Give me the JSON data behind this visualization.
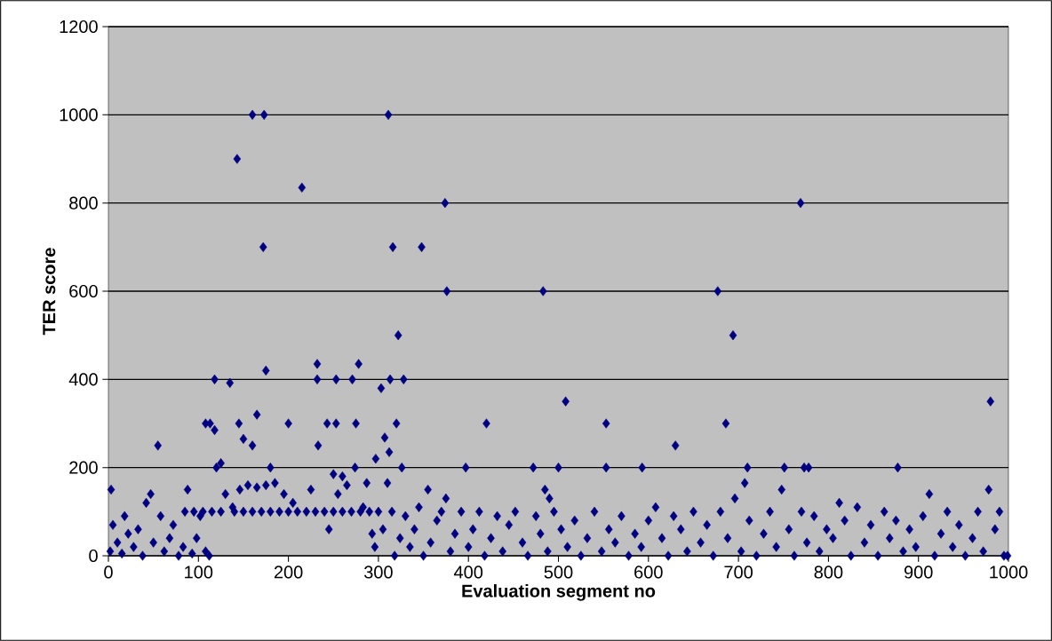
{
  "chart_data": {
    "type": "scatter",
    "xlabel": "Evaluation segment no",
    "ylabel": "TER score",
    "color": "#000080",
    "marker": "diamond",
    "grid": "y",
    "xlim": [
      0,
      1000
    ],
    "ylim": [
      0,
      1200
    ],
    "xticks": [
      0,
      100,
      200,
      300,
      400,
      500,
      600,
      700,
      800,
      900,
      1000
    ],
    "yticks": [
      0,
      200,
      400,
      600,
      800,
      1000,
      1200
    ],
    "x": [
      3,
      55,
      143,
      160,
      173,
      172,
      175,
      215,
      311,
      316,
      322,
      348,
      374,
      376,
      483,
      508,
      553,
      420,
      677,
      686,
      694,
      769,
      980,
      472,
      500,
      553,
      593,
      630,
      751,
      773,
      778,
      877,
      978,
      397,
      710,
      707,
      118,
      135,
      232,
      278,
      232,
      253,
      271,
      303,
      313,
      328,
      108,
      113,
      145,
      200,
      243,
      253,
      275,
      320,
      165,
      150,
      160,
      233,
      307,
      312,
      118,
      120,
      125,
      180,
      250,
      260,
      274,
      326,
      297,
      287,
      310,
      355,
      375,
      485,
      490,
      85,
      95,
      105,
      115,
      125,
      140,
      150,
      160,
      170,
      180,
      190,
      200,
      210,
      220,
      230,
      240,
      250,
      260,
      270,
      280,
      290,
      300,
      315,
      2,
      5,
      10,
      15,
      18,
      22,
      28,
      33,
      38,
      42,
      47,
      50,
      58,
      62,
      68,
      72,
      78,
      83,
      88,
      93,
      98,
      102,
      108,
      112,
      130,
      138,
      146,
      155,
      165,
      175,
      185,
      195,
      205,
      225,
      245,
      255,
      265,
      283,
      293,
      296,
      305,
      318,
      324,
      330,
      335,
      340,
      345,
      350,
      358,
      365,
      370,
      380,
      385,
      392,
      400,
      405,
      412,
      418,
      425,
      432,
      438,
      445,
      452,
      460,
      466,
      475,
      480,
      488,
      495,
      503,
      510,
      518,
      525,
      532,
      540,
      548,
      556,
      563,
      570,
      578,
      585,
      592,
      600,
      608,
      615,
      622,
      628,
      636,
      643,
      650,
      658,
      665,
      672,
      680,
      688,
      696,
      703,
      712,
      720,
      728,
      735,
      742,
      748,
      756,
      762,
      770,
      776,
      784,
      790,
      798,
      805,
      812,
      818,
      825,
      832,
      840,
      847,
      855,
      862,
      868,
      875,
      883,
      890,
      897,
      905,
      912,
      918,
      925,
      932,
      938,
      945,
      952,
      960,
      966,
      972,
      985,
      990,
      995,
      999
    ],
    "values": [
      150,
      250,
      900,
      1000,
      1000,
      700,
      420,
      835,
      1000,
      700,
      500,
      700,
      800,
      600,
      600,
      350,
      300,
      300,
      600,
      300,
      500,
      800,
      350,
      200,
      200,
      200,
      200,
      250,
      200,
      200,
      200,
      200,
      150,
      200,
      200,
      165,
      400,
      392,
      435,
      435,
      400,
      400,
      400,
      380,
      400,
      400,
      300,
      300,
      300,
      300,
      300,
      300,
      300,
      300,
      320,
      265,
      250,
      250,
      268,
      235,
      285,
      200,
      210,
      200,
      185,
      180,
      200,
      200,
      220,
      165,
      165,
      150,
      130,
      150,
      130,
      100,
      100,
      100,
      100,
      100,
      100,
      100,
      100,
      100,
      100,
      100,
      100,
      100,
      100,
      100,
      100,
      100,
      100,
      100,
      100,
      100,
      100,
      100,
      10,
      70,
      30,
      5,
      90,
      50,
      20,
      60,
      0,
      120,
      140,
      30,
      90,
      10,
      40,
      70,
      0,
      20,
      150,
      5,
      40,
      90,
      10,
      0,
      140,
      110,
      150,
      160,
      155,
      160,
      165,
      140,
      120,
      150,
      60,
      140,
      160,
      110,
      50,
      20,
      60,
      0,
      40,
      90,
      20,
      60,
      110,
      0,
      30,
      80,
      100,
      10,
      50,
      100,
      20,
      60,
      100,
      0,
      40,
      90,
      10,
      70,
      100,
      30,
      0,
      90,
      50,
      10,
      100,
      60,
      20,
      80,
      0,
      40,
      100,
      10,
      60,
      30,
      90,
      0,
      50,
      20,
      80,
      110,
      40,
      0,
      90,
      60,
      10,
      100,
      30,
      70,
      0,
      100,
      40,
      130,
      10,
      80,
      0,
      50,
      100,
      20,
      150,
      60,
      0,
      100,
      30,
      90,
      10,
      60,
      40,
      120,
      80,
      0,
      110,
      30,
      70,
      0,
      100,
      40,
      80,
      10,
      60,
      20,
      90,
      140,
      0,
      50,
      100,
      20,
      70,
      0,
      40,
      100,
      10,
      60,
      100,
      0,
      0
    ]
  }
}
